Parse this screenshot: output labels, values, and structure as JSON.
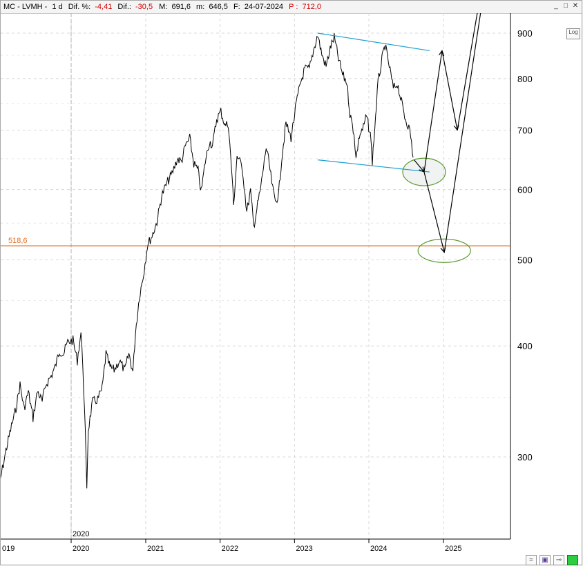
{
  "titlebar": {
    "symbol": "MC - LVMH -",
    "interval": "1 d",
    "dif_pct_label": "Dif. %:",
    "dif_pct_value": "-4,41",
    "dif_label": "Dif.:",
    "dif_value": "-30,5",
    "max_label": "M:",
    "max_value": "691,6",
    "min_label": "m:",
    "min_value": "646,5",
    "date_label": "F:",
    "date_value": "24-07-2024",
    "price_label": "P :",
    "price_value": "712,0"
  },
  "controls": {
    "log_label": "Log",
    "minimize": "_",
    "restore": "□",
    "close": "✕"
  },
  "chart_data": {
    "type": "line",
    "scale": "log",
    "ylim": [
      260,
      960
    ],
    "y_ticks": [
      "900",
      "800",
      "700",
      "600",
      "500",
      "400",
      "300"
    ],
    "x_ticks": [
      "019",
      "2020",
      "2021",
      "2022",
      "2023",
      "2024",
      "2025"
    ],
    "x_marker_label": "2020",
    "support_level": {
      "label": "518,6",
      "value": 518.6,
      "color": "#e07020"
    },
    "series": [
      {
        "values": [
          {
            "x": "2019-01-02",
            "y": 268
          },
          {
            "x": "2019-01-20",
            "y": 284
          },
          {
            "x": "2019-02-15",
            "y": 305
          },
          {
            "x": "2019-03-10",
            "y": 322
          },
          {
            "x": "2019-04-05",
            "y": 340
          },
          {
            "x": "2019-04-25",
            "y": 362
          },
          {
            "x": "2019-05-15",
            "y": 340
          },
          {
            "x": "2019-06-05",
            "y": 355
          },
          {
            "x": "2019-06-28",
            "y": 332
          },
          {
            "x": "2019-07-20",
            "y": 356
          },
          {
            "x": "2019-08-12",
            "y": 346
          },
          {
            "x": "2019-08-30",
            "y": 362
          },
          {
            "x": "2019-09-25",
            "y": 370
          },
          {
            "x": "2019-10-15",
            "y": 379
          },
          {
            "x": "2019-11-05",
            "y": 395
          },
          {
            "x": "2019-11-25",
            "y": 392
          },
          {
            "x": "2019-12-15",
            "y": 404
          },
          {
            "x": "2020-01-10",
            "y": 406
          },
          {
            "x": "2020-01-31",
            "y": 385
          },
          {
            "x": "2020-02-18",
            "y": 414
          },
          {
            "x": "2020-02-28",
            "y": 378
          },
          {
            "x": "2020-03-10",
            "y": 320
          },
          {
            "x": "2020-03-18",
            "y": 278
          },
          {
            "x": "2020-03-25",
            "y": 322
          },
          {
            "x": "2020-04-15",
            "y": 346
          },
          {
            "x": "2020-05-10",
            "y": 348
          },
          {
            "x": "2020-06-01",
            "y": 358
          },
          {
            "x": "2020-06-20",
            "y": 392
          },
          {
            "x": "2020-07-10",
            "y": 378
          },
          {
            "x": "2020-07-30",
            "y": 376
          },
          {
            "x": "2020-08-25",
            "y": 385
          },
          {
            "x": "2020-09-20",
            "y": 375
          },
          {
            "x": "2020-10-10",
            "y": 392
          },
          {
            "x": "2020-10-30",
            "y": 374
          },
          {
            "x": "2020-11-12",
            "y": 415
          },
          {
            "x": "2020-12-01",
            "y": 455
          },
          {
            "x": "2020-12-20",
            "y": 480
          },
          {
            "x": "2021-01-10",
            "y": 520
          },
          {
            "x": "2021-02-01",
            "y": 532
          },
          {
            "x": "2021-02-25",
            "y": 552
          },
          {
            "x": "2021-03-20",
            "y": 590
          },
          {
            "x": "2021-04-15",
            "y": 610
          },
          {
            "x": "2021-05-10",
            "y": 625
          },
          {
            "x": "2021-06-05",
            "y": 650
          },
          {
            "x": "2021-06-25",
            "y": 645
          },
          {
            "x": "2021-07-15",
            "y": 672
          },
          {
            "x": "2021-08-05",
            "y": 685
          },
          {
            "x": "2021-08-25",
            "y": 642
          },
          {
            "x": "2021-09-15",
            "y": 630
          },
          {
            "x": "2021-09-30",
            "y": 596
          },
          {
            "x": "2021-10-20",
            "y": 645
          },
          {
            "x": "2021-11-10",
            "y": 680
          },
          {
            "x": "2021-11-25",
            "y": 672
          },
          {
            "x": "2021-12-15",
            "y": 720
          },
          {
            "x": "2022-01-05",
            "y": 735
          },
          {
            "x": "2022-01-25",
            "y": 708
          },
          {
            "x": "2022-02-10",
            "y": 712
          },
          {
            "x": "2022-03-01",
            "y": 620
          },
          {
            "x": "2022-03-08",
            "y": 575
          },
          {
            "x": "2022-03-25",
            "y": 655
          },
          {
            "x": "2022-04-20",
            "y": 635
          },
          {
            "x": "2022-05-12",
            "y": 566
          },
          {
            "x": "2022-05-30",
            "y": 598
          },
          {
            "x": "2022-06-15",
            "y": 545
          },
          {
            "x": "2022-06-30",
            "y": 570
          },
          {
            "x": "2022-07-20",
            "y": 604
          },
          {
            "x": "2022-08-15",
            "y": 670
          },
          {
            "x": "2022-08-30",
            "y": 640
          },
          {
            "x": "2022-09-15",
            "y": 602
          },
          {
            "x": "2022-09-29",
            "y": 582
          },
          {
            "x": "2022-10-15",
            "y": 592
          },
          {
            "x": "2022-10-30",
            "y": 650
          },
          {
            "x": "2022-11-20",
            "y": 712
          },
          {
            "x": "2022-12-15",
            "y": 686
          },
          {
            "x": "2023-01-10",
            "y": 750
          },
          {
            "x": "2023-01-30",
            "y": 790
          },
          {
            "x": "2023-02-20",
            "y": 820
          },
          {
            "x": "2023-03-15",
            "y": 820
          },
          {
            "x": "2023-04-05",
            "y": 862
          },
          {
            "x": "2023-04-25",
            "y": 896
          },
          {
            "x": "2023-05-15",
            "y": 852
          },
          {
            "x": "2023-06-05",
            "y": 825
          },
          {
            "x": "2023-06-25",
            "y": 865
          },
          {
            "x": "2023-07-15",
            "y": 890
          },
          {
            "x": "2023-08-05",
            "y": 842
          },
          {
            "x": "2023-08-25",
            "y": 808
          },
          {
            "x": "2023-09-15",
            "y": 792
          },
          {
            "x": "2023-09-30",
            "y": 730
          },
          {
            "x": "2023-10-20",
            "y": 695
          },
          {
            "x": "2023-10-30",
            "y": 650
          },
          {
            "x": "2023-11-15",
            "y": 690
          },
          {
            "x": "2023-12-05",
            "y": 705
          },
          {
            "x": "2023-12-20",
            "y": 726
          },
          {
            "x": "2024-01-08",
            "y": 692
          },
          {
            "x": "2024-01-18",
            "y": 646
          },
          {
            "x": "2024-01-30",
            "y": 705
          },
          {
            "x": "2024-02-15",
            "y": 792
          },
          {
            "x": "2024-03-05",
            "y": 840
          },
          {
            "x": "2024-03-20",
            "y": 872
          },
          {
            "x": "2024-04-10",
            "y": 826
          },
          {
            "x": "2024-04-30",
            "y": 780
          },
          {
            "x": "2024-05-20",
            "y": 790
          },
          {
            "x": "2024-06-05",
            "y": 760
          },
          {
            "x": "2024-06-25",
            "y": 725
          },
          {
            "x": "2024-07-15",
            "y": 705
          },
          {
            "x": "2024-07-24",
            "y": 690
          },
          {
            "x": "2024-08-05",
            "y": 652
          }
        ]
      }
    ],
    "trendlines": [
      {
        "color": "#1aa0d0",
        "points": [
          {
            "x": "2023-04-25",
            "y": 900
          },
          {
            "x": "2024-10-25",
            "y": 860
          }
        ]
      },
      {
        "color": "#1aa0d0",
        "points": [
          {
            "x": "2023-04-25",
            "y": 648
          },
          {
            "x": "2024-10-25",
            "y": 628
          }
        ]
      }
    ],
    "projections": [
      {
        "color": "#000",
        "points": [
          {
            "x": "2024-08-10",
            "y": 648
          },
          {
            "x": "2024-09-28",
            "y": 628
          },
          {
            "x": "2024-12-25",
            "y": 860
          },
          {
            "x": "2025-03-10",
            "y": 700
          },
          {
            "x": "2025-06-25",
            "y": 975
          }
        ]
      },
      {
        "color": "#000",
        "points": [
          {
            "x": "2024-09-28",
            "y": 628
          },
          {
            "x": "2025-01-05",
            "y": 510
          },
          {
            "x": "2025-07-10",
            "y": 975
          }
        ]
      }
    ],
    "ellipses": [
      {
        "color": "#5a9a30",
        "x": "2024-09-28",
        "y": 628
      },
      {
        "color": "#5a9a30",
        "x": "2025-01-05",
        "y": 512
      }
    ]
  }
}
